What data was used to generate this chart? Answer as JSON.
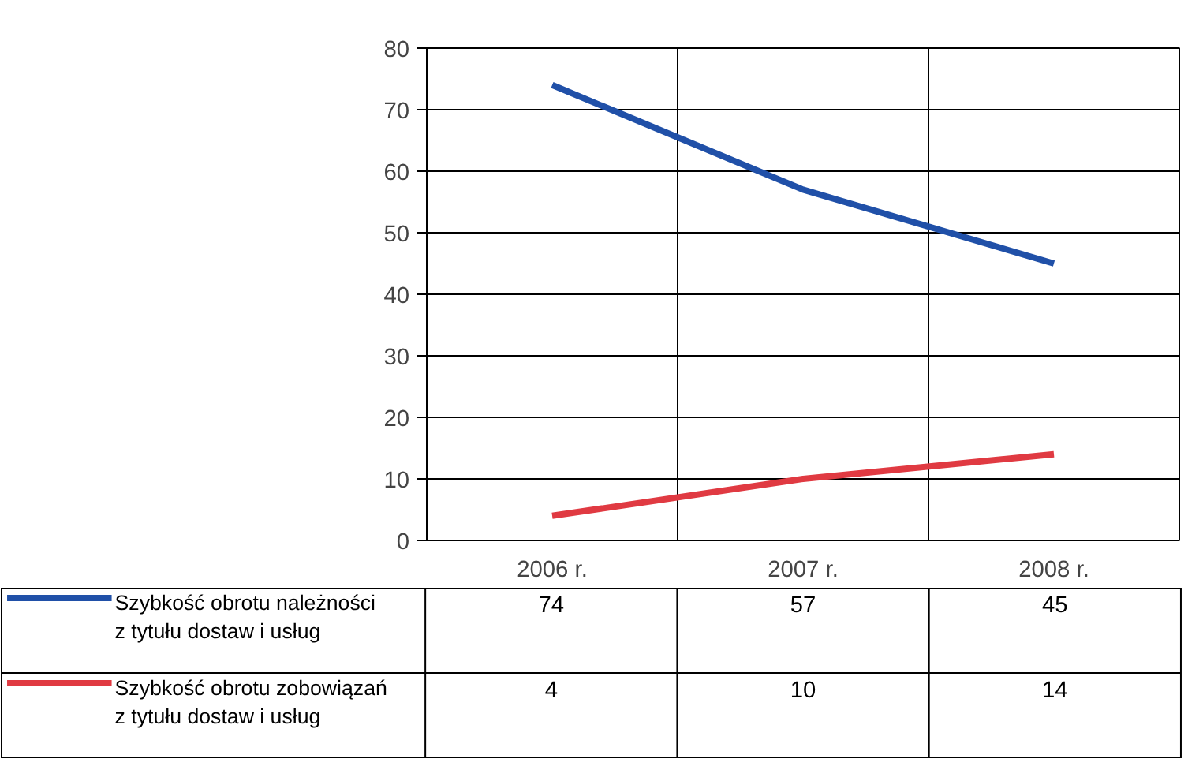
{
  "chart_data": {
    "type": "line",
    "categories": [
      "2006 r.",
      "2007 r.",
      "2008 r."
    ],
    "series": [
      {
        "name": "Szybkość obrotu należności z tytułu dostaw i usług",
        "color": "#2050a8",
        "values": [
          74,
          57,
          45
        ]
      },
      {
        "name": "Szybkość obrotu zobowiązań z tytułu dostaw i usług",
        "color": "#e03a42",
        "values": [
          4,
          10,
          14
        ]
      }
    ],
    "ylim": [
      0,
      80
    ],
    "yticks": [
      0,
      10,
      20,
      30,
      40,
      50,
      60,
      70,
      80
    ],
    "grid": true,
    "legend": "left",
    "data_labels": true,
    "marker": "none",
    "line_style": "solid"
  }
}
